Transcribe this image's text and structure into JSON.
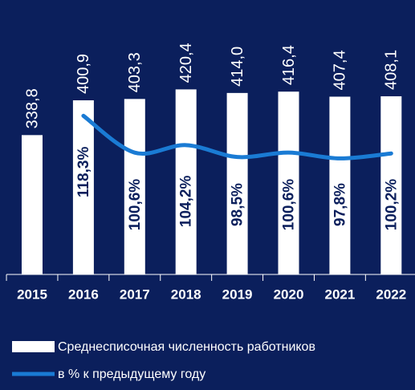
{
  "chart_data": {
    "type": "bar_line",
    "categories": [
      "2015",
      "2016",
      "2017",
      "2018",
      "2019",
      "2020",
      "2021",
      "2022"
    ],
    "ylim": [
      90,
      580
    ],
    "y2lim": [
      42,
      174
    ],
    "series": [
      {
        "name": "Среднесписочная численность работников",
        "color": "#ffffff",
        "type": "bar",
        "values": [
          338.8,
          400.9,
          403.3,
          420.4,
          414.0,
          416.4,
          407.4,
          408.1
        ],
        "value_labels": [
          "338,8",
          "400,9",
          "403,3",
          "420,4",
          "414,0",
          "416,4",
          "407,4",
          "408,1"
        ]
      },
      {
        "name": "в % к предыдущему году",
        "color": "#1a7bd4",
        "type": "line",
        "axis": "y2",
        "values": [
          null,
          118.3,
          100.6,
          104.2,
          98.5,
          100.6,
          97.8,
          100.2
        ],
        "value_labels": [
          null,
          "118,3%",
          "100,6%",
          "104,2%",
          "98,5%",
          "100,6%",
          "97,8%",
          "100,2%"
        ]
      }
    ]
  }
}
